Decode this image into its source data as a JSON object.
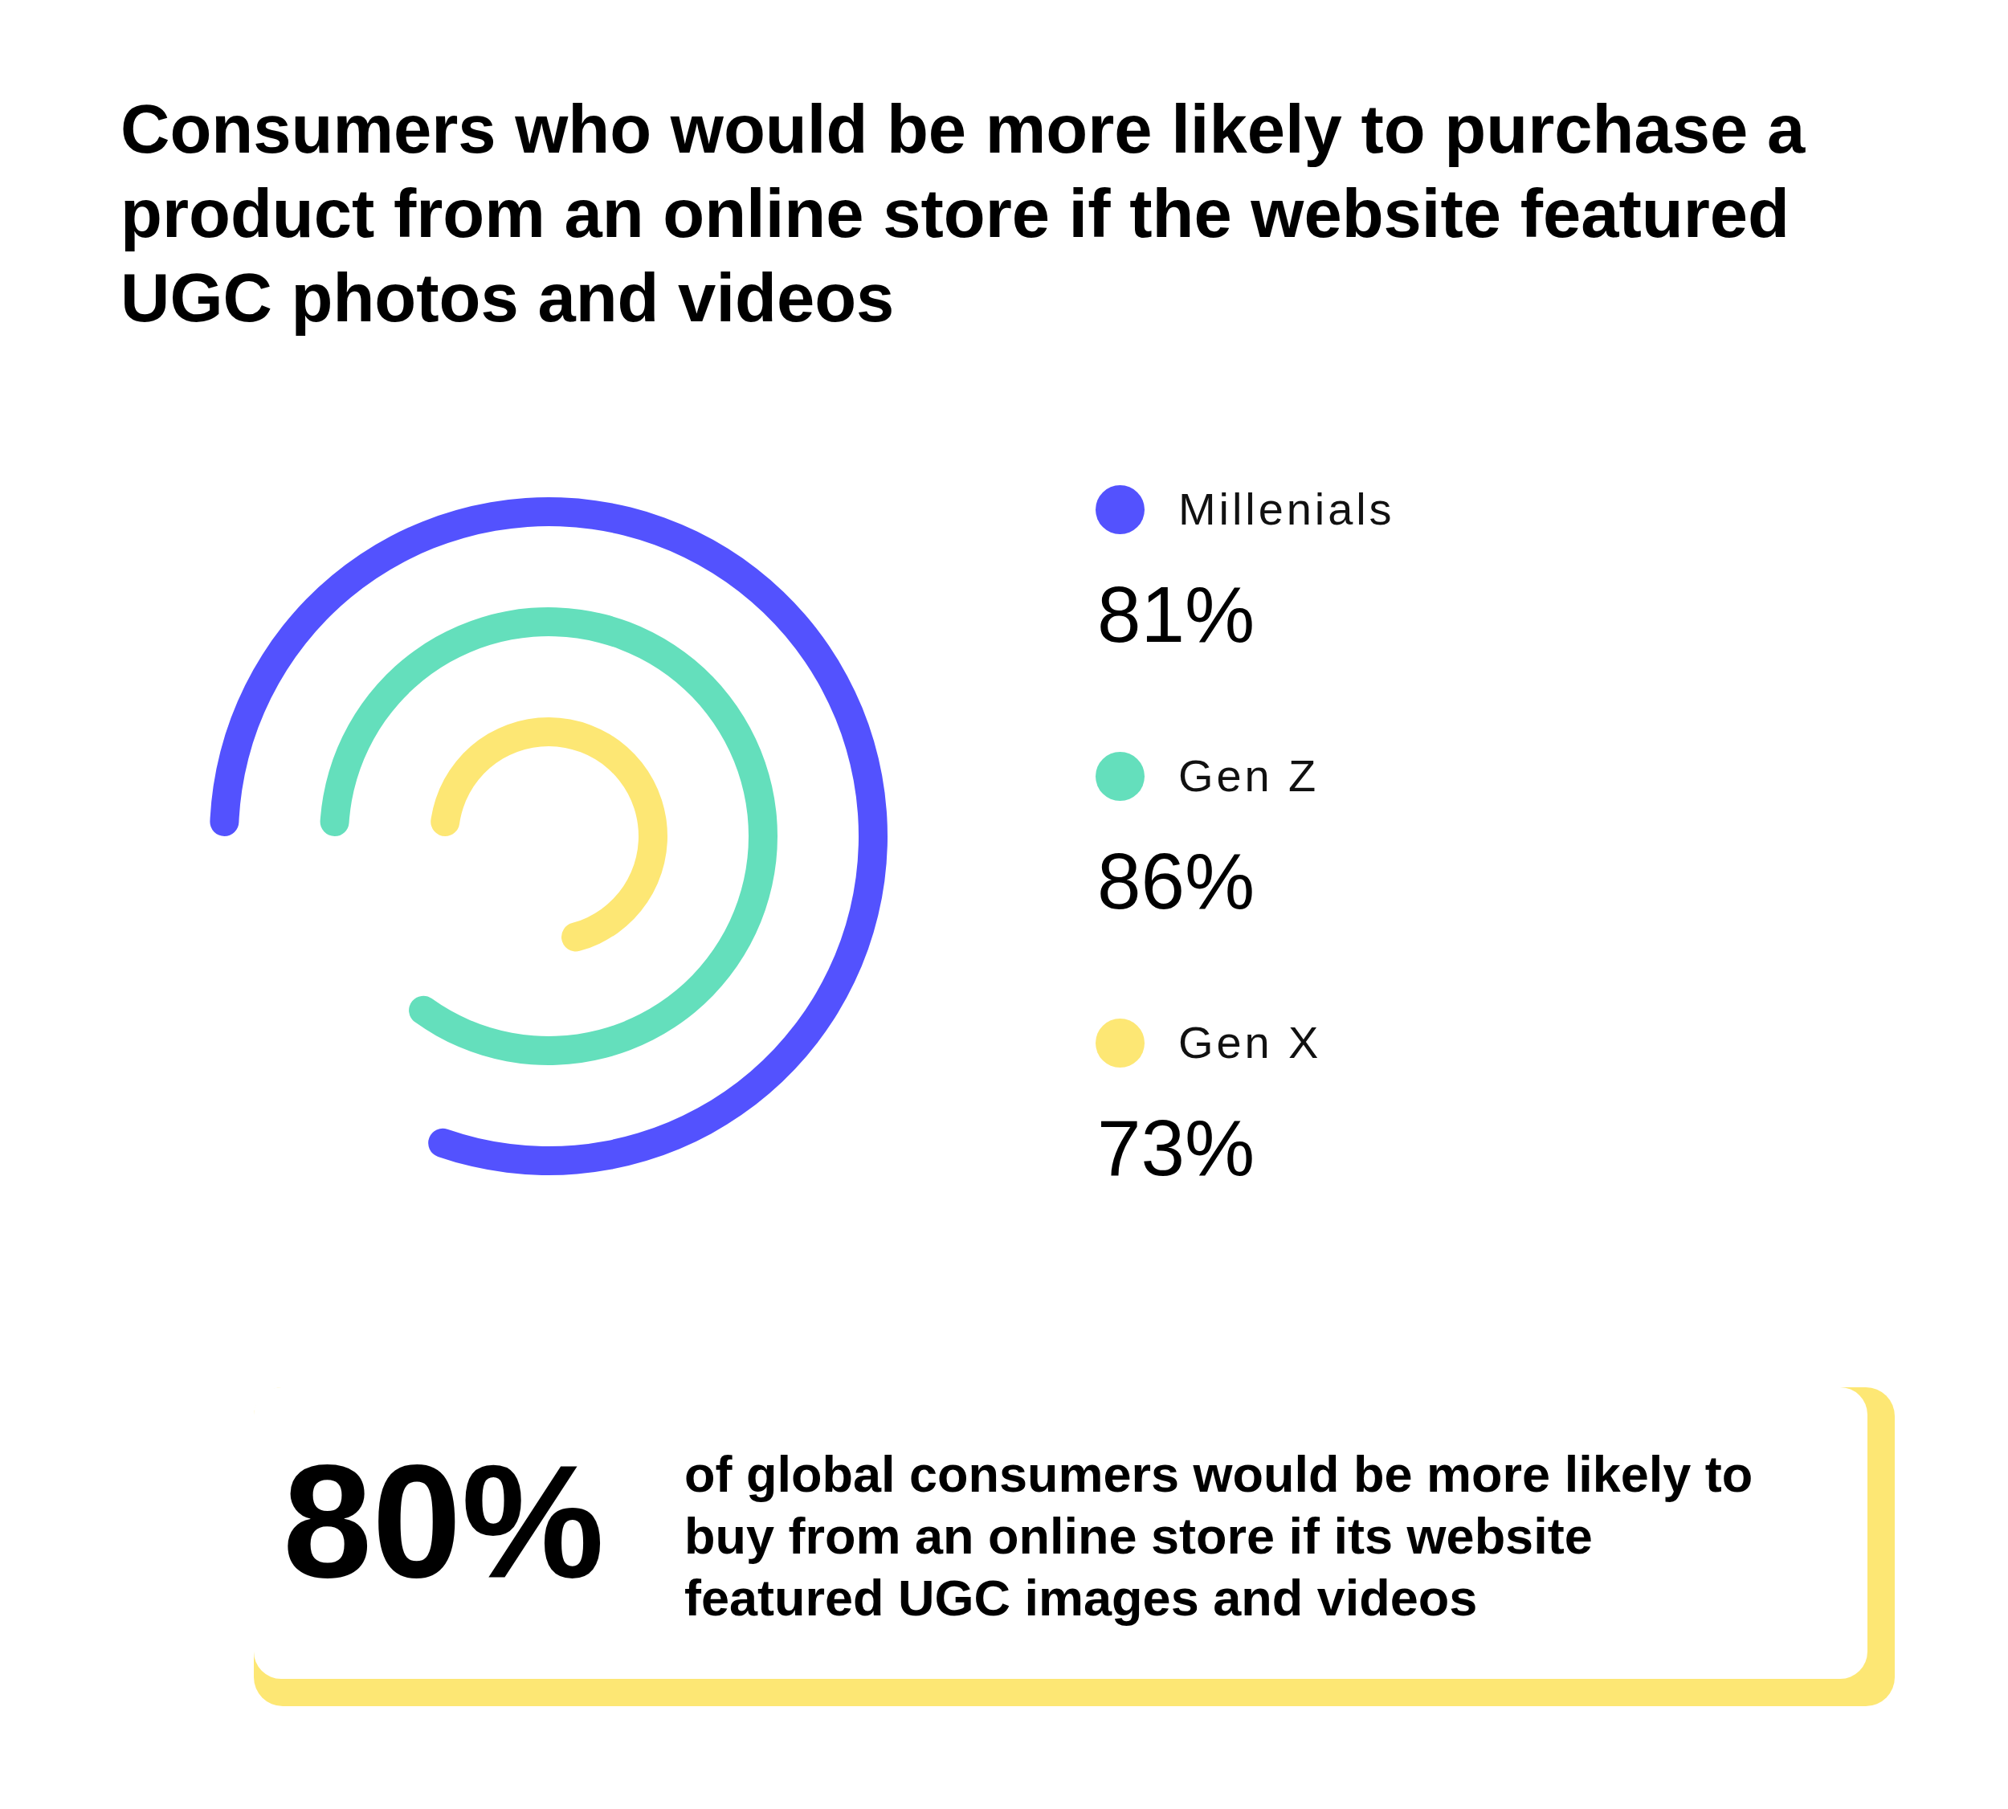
{
  "chart_data": {
    "type": "other",
    "title": "Consumers who would be more likely to purchase a product from an online store if the website featured UGC photos and videos",
    "categories": [
      null
    ],
    "series": [
      {
        "name": "Millenials",
        "color": "#5352fe",
        "values": [
          81
        ],
        "value_labels": [
          "81%"
        ]
      },
      {
        "name": "Gen Z",
        "color": "#64dfbc",
        "values": [
          86
        ],
        "value_labels": [
          "86%"
        ]
      },
      {
        "name": "Gen X",
        "color": "#fde774",
        "values": [
          73
        ],
        "value_labels": [
          "73%"
        ]
      }
    ],
    "legend": "right",
    "annotations": [
      "80%",
      "of global consumers would be more likely to buy from an online store if its website featured UGC images and videos"
    ]
  }
}
